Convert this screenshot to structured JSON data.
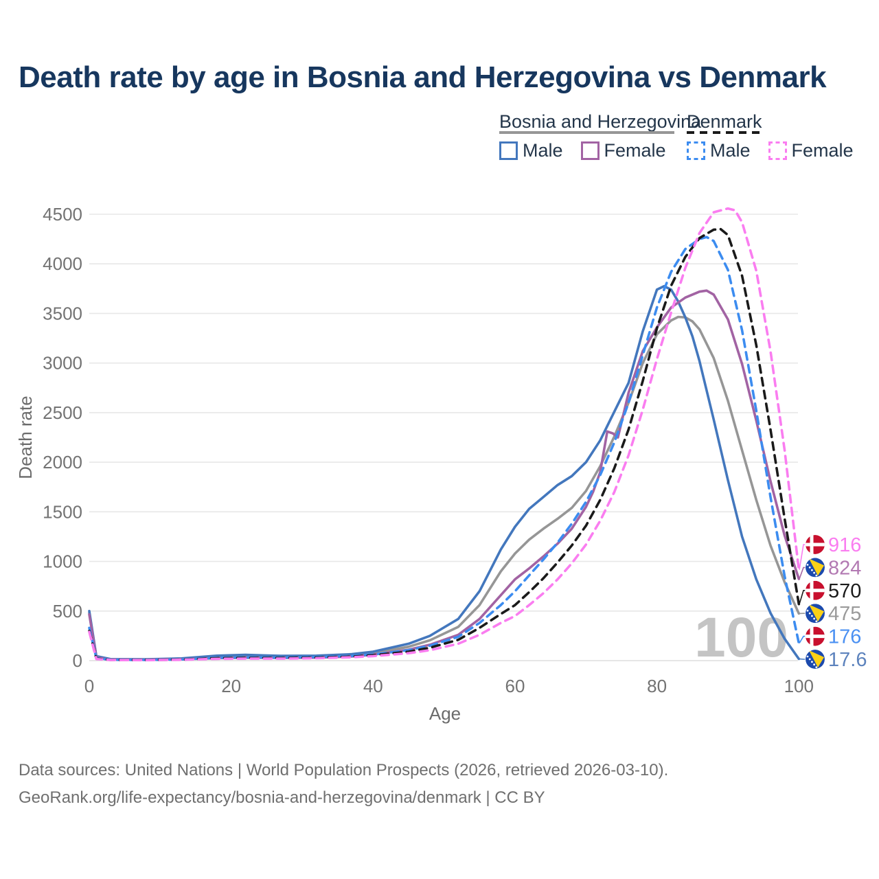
{
  "page": {
    "background": "#ffffff",
    "footer": {
      "line1": "Data sources: United Nations | World Population Prospects (2026, retrieved 2026-03-10).",
      "line2": "GeoRank.org/life-expectancy/bosnia-and-herzegovina/denmark | CC BY"
    }
  },
  "legend": {
    "groups": [
      {
        "title": "Bosnia and Herzegovina",
        "series_ref": "bih_total",
        "items": [
          {
            "label": "Male",
            "series_ref": "bih_male"
          },
          {
            "label": "Female",
            "series_ref": "bih_female"
          }
        ]
      },
      {
        "title": "Denmark",
        "series_ref": "dnk_total",
        "items": [
          {
            "label": "Male",
            "series_ref": "dnk_male"
          },
          {
            "label": "Female",
            "series_ref": "dnk_female"
          }
        ]
      }
    ]
  },
  "chart_data": {
    "type": "line",
    "title": "Death rate by age in Bosnia and Herzegovina vs Denmark",
    "xlabel": "Age",
    "ylabel": "Death rate",
    "xlim": [
      0,
      107
    ],
    "ylim": [
      0,
      4700
    ],
    "xticks": [
      0,
      20,
      40,
      60,
      80,
      100
    ],
    "yticks": [
      0,
      500,
      1000,
      1500,
      2000,
      2500,
      3000,
      3500,
      4000,
      4500
    ],
    "grid": "horizontal",
    "legend_position": "top-right",
    "hover_age_watermark": "100",
    "colors": {
      "grid": "#e7e7e7",
      "axis_text": "#737373",
      "watermark": "#c4c4c4",
      "title": "#17375e"
    },
    "series": [
      {
        "id": "bih_total",
        "name": "Bosnia and Herzegovina",
        "country": "Bosnia and Herzegovina",
        "flag": "bosnia-flag-icon",
        "color": "#969696",
        "dash": false,
        "label_color": "#9a9a9a",
        "end_label": "475",
        "x": [
          0,
          1,
          3,
          8,
          13,
          18,
          22,
          27,
          32,
          37,
          40,
          45,
          48,
          52,
          55,
          58,
          60,
          62,
          64,
          66,
          68,
          70,
          72,
          74,
          76,
          78,
          80,
          82,
          83,
          84,
          85,
          86,
          88,
          90,
          92,
          94,
          96,
          98,
          100
        ],
        "values": [
          480,
          38,
          12,
          11,
          18,
          40,
          46,
          38,
          40,
          52,
          75,
          140,
          205,
          340,
          560,
          900,
          1080,
          1220,
          1330,
          1430,
          1540,
          1710,
          1960,
          2260,
          2600,
          3000,
          3290,
          3430,
          3465,
          3460,
          3420,
          3340,
          3050,
          2620,
          2120,
          1620,
          1160,
          790,
          475
        ]
      },
      {
        "id": "bih_male",
        "name": "Bosnia and Herzegovina — Male",
        "country": "Bosnia and Herzegovina",
        "flag": "bosnia-flag-icon",
        "color": "#4377bd",
        "dash": false,
        "label_color": "#5d83bd",
        "end_label": "17.6",
        "x": [
          0,
          1,
          3,
          8,
          13,
          18,
          22,
          27,
          32,
          37,
          40,
          45,
          48,
          52,
          55,
          58,
          60,
          62,
          64,
          66,
          68,
          70,
          72,
          74,
          76,
          78,
          80,
          81,
          82,
          83,
          84,
          85,
          86,
          88,
          90,
          92,
          94,
          96,
          98,
          100
        ],
        "values": [
          500,
          45,
          15,
          13,
          22,
          50,
          58,
          48,
          50,
          65,
          90,
          170,
          250,
          420,
          700,
          1120,
          1350,
          1530,
          1650,
          1770,
          1860,
          2000,
          2220,
          2510,
          2800,
          3320,
          3740,
          3775,
          3740,
          3620,
          3460,
          3270,
          3020,
          2430,
          1820,
          1250,
          820,
          480,
          220,
          17.6
        ]
      },
      {
        "id": "bih_female",
        "name": "Bosnia and Herzegovina — Female",
        "country": "Bosnia and Herzegovina",
        "flag": "bosnia-flag-icon",
        "color": "#a263a3",
        "dash": false,
        "label_color": "#b279b2",
        "end_label": "824",
        "x": [
          0,
          1,
          3,
          8,
          13,
          18,
          22,
          27,
          32,
          37,
          40,
          45,
          48,
          52,
          55,
          58,
          60,
          62,
          64,
          66,
          68,
          70,
          71,
          72,
          73,
          73.8,
          74.5,
          75,
          76,
          78,
          80,
          82,
          84,
          86,
          87,
          88,
          90,
          92,
          94,
          96,
          98,
          100
        ],
        "values": [
          465,
          32,
          10,
          9,
          14,
          25,
          30,
          27,
          30,
          42,
          60,
          110,
          160,
          260,
          420,
          660,
          820,
          930,
          1050,
          1180,
          1330,
          1550,
          1700,
          1900,
          2310,
          2290,
          2250,
          2400,
          2700,
          3120,
          3360,
          3560,
          3660,
          3720,
          3730,
          3690,
          3440,
          2990,
          2420,
          1810,
          1260,
          824
        ]
      },
      {
        "id": "dnk_male",
        "name": "Denmark — Male",
        "country": "Denmark",
        "flag": "denmark-flag-icon",
        "color": "#3c8cf0",
        "dash": true,
        "label_color": "#4a90f2",
        "end_label": "176",
        "x": [
          0,
          1,
          3,
          8,
          13,
          18,
          22,
          27,
          32,
          37,
          40,
          45,
          48,
          52,
          55,
          58,
          60,
          62,
          64,
          66,
          68,
          70,
          72,
          74,
          76,
          78,
          80,
          82,
          84,
          86,
          87,
          88,
          90,
          92,
          94,
          96,
          98,
          100
        ],
        "values": [
          330,
          25,
          8,
          7,
          12,
          28,
          32,
          30,
          35,
          48,
          62,
          105,
          150,
          240,
          380,
          560,
          700,
          860,
          1020,
          1190,
          1380,
          1600,
          1870,
          2200,
          2600,
          3080,
          3560,
          3920,
          4150,
          4250,
          4270,
          4230,
          3940,
          3330,
          2520,
          1650,
          850,
          176
        ]
      },
      {
        "id": "dnk_total",
        "name": "Denmark",
        "country": "Denmark",
        "flag": "denmark-flag-icon",
        "color": "#1a1a1a",
        "dash": true,
        "label_color": "#1a1a1a",
        "end_label": "570",
        "x": [
          0,
          1,
          3,
          8,
          13,
          18,
          22,
          27,
          32,
          37,
          40,
          45,
          48,
          52,
          55,
          58,
          60,
          62,
          64,
          66,
          68,
          70,
          72,
          74,
          76,
          78,
          80,
          82,
          84,
          86,
          88,
          89,
          90,
          92,
          94,
          96,
          98,
          100
        ],
        "values": [
          300,
          20,
          7,
          6,
          10,
          24,
          27,
          26,
          30,
          40,
          55,
          90,
          130,
          210,
          330,
          470,
          560,
          690,
          830,
          990,
          1160,
          1360,
          1620,
          1940,
          2330,
          2820,
          3350,
          3780,
          4070,
          4260,
          4345,
          4350,
          4290,
          3880,
          3180,
          2330,
          1430,
          570
        ]
      },
      {
        "id": "dnk_female",
        "name": "Denmark — Female",
        "country": "Denmark",
        "flag": "denmark-flag-icon",
        "color": "#fa7df0",
        "dash": true,
        "label_color": "#fa7df0",
        "end_label": "916",
        "x": [
          0,
          1,
          3,
          8,
          13,
          18,
          22,
          27,
          32,
          37,
          40,
          45,
          48,
          52,
          55,
          58,
          60,
          62,
          64,
          66,
          68,
          70,
          72,
          74,
          76,
          78,
          80,
          82,
          84,
          86,
          88,
          90,
          91,
          92,
          94,
          96,
          98,
          100
        ],
        "values": [
          290,
          16,
          6,
          5,
          8,
          18,
          20,
          20,
          24,
          34,
          46,
          75,
          105,
          170,
          260,
          380,
          450,
          560,
          680,
          820,
          980,
          1170,
          1410,
          1700,
          2070,
          2530,
          3040,
          3510,
          3960,
          4310,
          4520,
          4558,
          4540,
          4420,
          3930,
          3120,
          2120,
          916
        ]
      }
    ]
  }
}
